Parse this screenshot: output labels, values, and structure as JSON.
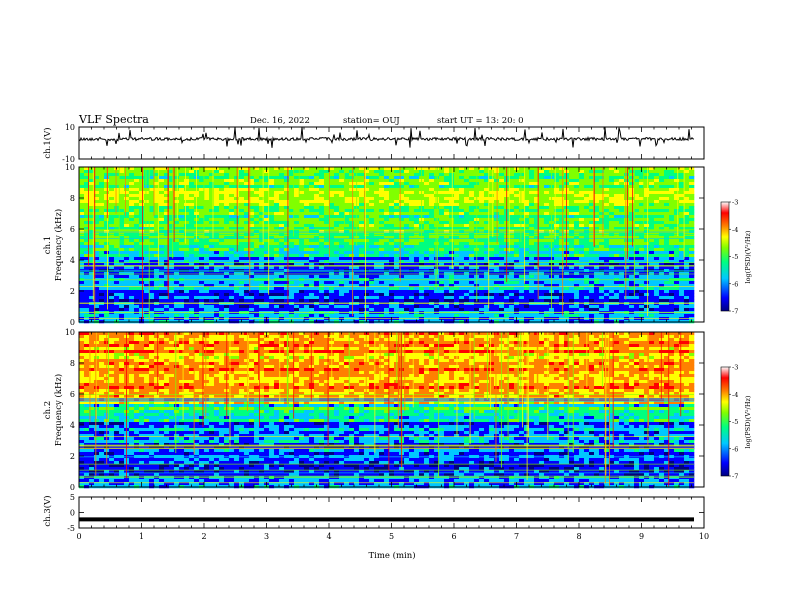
{
  "header": {
    "title": "VLF Spectra",
    "date": "Dec. 16, 2022",
    "station": "station= OUJ",
    "start": "start  UT =   13: 20: 0"
  },
  "chart_data": [
    {
      "type": "line",
      "id": "ch1",
      "ylabel": "ch.1(V)",
      "ylim": [
        -10,
        10
      ],
      "yticks": [
        10,
        -10
      ],
      "baseline": 2.5,
      "xlim": [
        0,
        10
      ]
    },
    {
      "type": "heatmap",
      "id": "ch1-spec",
      "ylabel_line1": "ch.1",
      "ylabel_line2": "Frequency (kHz)",
      "ylim": [
        0,
        10
      ],
      "yticks": [
        0,
        2,
        4,
        6,
        8,
        10
      ],
      "xlim": [
        0,
        10
      ],
      "colorbar": {
        "label": "log(PSD)(V²/Hz)",
        "ticks": [
          -3,
          -4,
          -5,
          -6,
          -7
        ],
        "range": [
          -7,
          -3
        ]
      }
    },
    {
      "type": "heatmap",
      "id": "ch2-spec",
      "ylabel_line1": "ch.2",
      "ylabel_line2": "Frequency (kHz)",
      "ylim": [
        0,
        10
      ],
      "yticks": [
        0,
        2,
        4,
        6,
        8,
        10
      ],
      "xlim": [
        0,
        10
      ],
      "colorbar": {
        "label": "log(PSD)(V²/Hz)",
        "ticks": [
          -3,
          -4,
          -5,
          -6,
          -7
        ],
        "range": [
          -7,
          -3
        ]
      }
    },
    {
      "type": "line",
      "id": "ch3",
      "ylabel": "ch.3(V)",
      "ylim": [
        -5,
        5
      ],
      "yticks": [
        5,
        0,
        -5
      ],
      "baseline": -2.2,
      "xlim": [
        0,
        10
      ],
      "xlabel": "Time (min)",
      "xticks": [
        0,
        1,
        2,
        3,
        4,
        5,
        6,
        7,
        8,
        9,
        10
      ]
    }
  ],
  "colors": {
    "scale": [
      "#000080",
      "#0000ff",
      "#00c8ff",
      "#00ff80",
      "#80ff00",
      "#ffff00",
      "#ff8000",
      "#ff0000",
      "#ffffff"
    ]
  }
}
